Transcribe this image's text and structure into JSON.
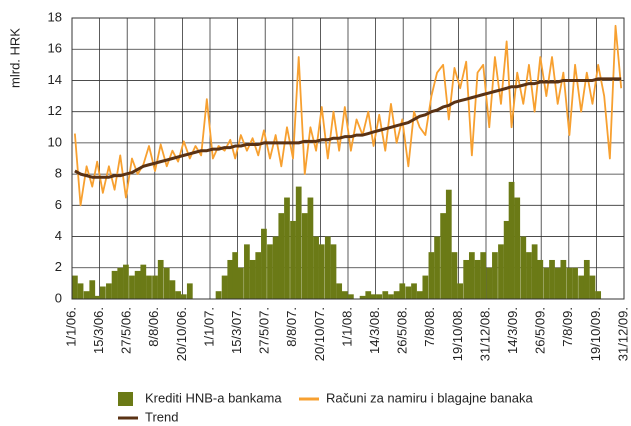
{
  "chart_data": {
    "type": "line",
    "ylabel": "mlrd. HRK",
    "ylim": [
      0,
      18
    ],
    "yticks": [
      0,
      2,
      4,
      6,
      8,
      10,
      12,
      14,
      16,
      18
    ],
    "grid": true,
    "xlim": [
      "2006-01-01",
      "2009-12-31"
    ],
    "xticks": [
      {
        "value": "2006-01-01",
        "label": "1/1/06."
      },
      {
        "value": "2006-03-15",
        "label": "15/3/06."
      },
      {
        "value": "2006-05-27",
        "label": "27/5/06."
      },
      {
        "value": "2006-08-08",
        "label": "8/8/06."
      },
      {
        "value": "2006-10-20",
        "label": "20/10/06."
      },
      {
        "value": "2007-01-01",
        "label": "1/1/07."
      },
      {
        "value": "2007-03-15",
        "label": "15/3/07."
      },
      {
        "value": "2007-05-27",
        "label": "27/5/07."
      },
      {
        "value": "2007-08-08",
        "label": "8/8/07."
      },
      {
        "value": "2007-10-20",
        "label": "20/10/07."
      },
      {
        "value": "2008-01-01",
        "label": "1/1/08."
      },
      {
        "value": "2008-03-14",
        "label": "14/3/08."
      },
      {
        "value": "2008-05-26",
        "label": "26/5/08."
      },
      {
        "value": "2008-08-07",
        "label": "7/8/08."
      },
      {
        "value": "2008-10-19",
        "label": "19/10/08."
      },
      {
        "value": "2008-12-31",
        "label": "31/12/08."
      },
      {
        "value": "2009-03-14",
        "label": "14/3/09."
      },
      {
        "value": "2009-05-26",
        "label": "26/5/09."
      },
      {
        "value": "2009-08-07",
        "label": "7/8/09."
      },
      {
        "value": "2009-10-19",
        "label": "19/10/09."
      },
      {
        "value": "2009-12-31",
        "label": "31/12/09."
      }
    ],
    "x": [
      "2006-01-01",
      "2006-01-16",
      "2006-02-01",
      "2006-02-16",
      "2006-03-01",
      "2006-03-16",
      "2006-04-01",
      "2006-04-16",
      "2006-05-01",
      "2006-05-16",
      "2006-06-01",
      "2006-06-16",
      "2006-07-01",
      "2006-07-16",
      "2006-08-01",
      "2006-08-16",
      "2006-09-01",
      "2006-09-16",
      "2006-10-01",
      "2006-10-16",
      "2006-11-01",
      "2006-11-16",
      "2006-12-01",
      "2006-12-16",
      "2007-01-01",
      "2007-01-16",
      "2007-02-01",
      "2007-02-16",
      "2007-03-01",
      "2007-03-16",
      "2007-04-01",
      "2007-04-16",
      "2007-05-01",
      "2007-05-16",
      "2007-06-01",
      "2007-06-16",
      "2007-07-01",
      "2007-07-16",
      "2007-08-01",
      "2007-08-16",
      "2007-09-01",
      "2007-09-16",
      "2007-10-01",
      "2007-10-16",
      "2007-11-01",
      "2007-11-16",
      "2007-12-01",
      "2007-12-16",
      "2008-01-01",
      "2008-01-16",
      "2008-02-01",
      "2008-02-16",
      "2008-03-01",
      "2008-03-16",
      "2008-04-01",
      "2008-04-16",
      "2008-05-01",
      "2008-05-16",
      "2008-06-01",
      "2008-06-16",
      "2008-07-01",
      "2008-07-16",
      "2008-08-01",
      "2008-08-16",
      "2008-09-01",
      "2008-09-16",
      "2008-10-01",
      "2008-10-16",
      "2008-11-01",
      "2008-11-16",
      "2008-12-01",
      "2008-12-16",
      "2009-01-01",
      "2009-01-16",
      "2009-02-01",
      "2009-02-16",
      "2009-03-01",
      "2009-03-16",
      "2009-04-01",
      "2009-04-16",
      "2009-05-01",
      "2009-05-16",
      "2009-06-01",
      "2009-06-16",
      "2009-07-01",
      "2009-07-16",
      "2009-08-01",
      "2009-08-16",
      "2009-09-01",
      "2009-09-16",
      "2009-10-01",
      "2009-10-16",
      "2009-11-01",
      "2009-11-16",
      "2009-12-01",
      "2009-12-16"
    ],
    "series": [
      {
        "name": "Krediti HNB-a bankama",
        "color": "#6b7a16",
        "kind": "bar",
        "values": [
          1.5,
          1.0,
          0.5,
          1.2,
          0.2,
          0.8,
          1.0,
          1.8,
          2.0,
          2.2,
          1.5,
          1.8,
          2.2,
          1.5,
          1.5,
          2.5,
          2.0,
          1.2,
          0.5,
          0.3,
          1.0,
          0,
          0,
          0,
          0,
          0.5,
          1.5,
          2.5,
          3.0,
          2.0,
          3.5,
          2.5,
          3.0,
          4.5,
          3.5,
          4.0,
          5.5,
          6.5,
          5.0,
          7.2,
          5.5,
          6.5,
          4.0,
          3.5,
          4.0,
          3.5,
          1.0,
          0.5,
          0.3,
          0,
          0.2,
          0.5,
          0.3,
          0.3,
          0.5,
          0.3,
          0.5,
          1.0,
          0.8,
          1.0,
          0.5,
          1.5,
          3.0,
          4.0,
          5.5,
          7.0,
          3.0,
          1.0,
          2.5,
          3.0,
          2.5,
          3.0,
          2.0,
          3.0,
          3.5,
          5.0,
          7.5,
          6.5,
          4.0,
          3.0,
          3.5,
          2.5,
          2.0,
          2.5,
          2.0,
          2.5,
          2.0,
          2.0,
          1.5,
          2.5,
          1.5,
          0.5,
          0,
          0,
          0,
          0
        ]
      },
      {
        "name": "Računi za namiru i blagajne banaka",
        "color": "#f7a030",
        "kind": "line",
        "values": [
          10.6,
          6.0,
          8.5,
          7.2,
          8.8,
          6.8,
          8.5,
          7.0,
          9.2,
          6.5,
          9.0,
          8.0,
          8.6,
          9.8,
          8.2,
          9.9,
          8.5,
          9.5,
          8.8,
          10.1,
          9.0,
          9.8,
          9.2,
          12.8,
          9.0,
          9.8,
          9.5,
          10.2,
          9.0,
          10.5,
          9.5,
          10.3,
          9.2,
          10.8,
          9.0,
          10.5,
          8.5,
          11.0,
          9.0,
          15.5,
          8.0,
          11.0,
          9.5,
          12.3,
          9.0,
          12.0,
          9.5,
          12.3,
          9.5,
          11.5,
          10.5,
          12.0,
          9.8,
          11.8,
          9.5,
          12.5,
          10.0,
          11.5,
          8.5,
          12.0,
          11.0,
          10.5,
          13.0,
          14.5,
          15.0,
          11.5,
          14.8,
          13.5,
          15.2,
          9.2,
          14.5,
          15.0,
          11.0,
          15.5,
          12.5,
          16.5,
          11.0,
          14.5,
          12.5,
          15.0,
          12.0,
          15.5,
          13.0,
          15.5,
          12.5,
          14.5,
          10.5,
          15.0,
          12.0,
          14.5,
          12.5,
          15.0,
          13.0,
          9.0,
          17.5,
          13.5
        ]
      },
      {
        "name": "Trend",
        "color": "#5a3214",
        "kind": "line",
        "values": [
          8.2,
          8.0,
          7.9,
          7.8,
          7.8,
          7.8,
          7.8,
          7.9,
          7.9,
          8.0,
          8.1,
          8.3,
          8.5,
          8.6,
          8.7,
          8.8,
          8.9,
          9.0,
          9.1,
          9.2,
          9.3,
          9.4,
          9.5,
          9.5,
          9.6,
          9.6,
          9.7,
          9.7,
          9.8,
          9.8,
          9.9,
          9.9,
          9.9,
          10.0,
          10.0,
          10.0,
          10.0,
          10.0,
          10.0,
          10.0,
          10.1,
          10.1,
          10.1,
          10.2,
          10.2,
          10.3,
          10.3,
          10.4,
          10.4,
          10.5,
          10.5,
          10.6,
          10.7,
          10.8,
          10.9,
          11.0,
          11.1,
          11.2,
          11.3,
          11.5,
          11.7,
          11.8,
          12.0,
          12.1,
          12.3,
          12.4,
          12.6,
          12.7,
          12.8,
          12.9,
          13.0,
          13.1,
          13.2,
          13.3,
          13.4,
          13.5,
          13.6,
          13.6,
          13.7,
          13.8,
          13.8,
          13.9,
          13.9,
          13.9,
          13.9,
          14.0,
          14.0,
          14.0,
          14.0,
          14.0,
          14.0,
          14.1,
          14.1,
          14.1,
          14.1,
          14.1
        ]
      }
    ]
  }
}
